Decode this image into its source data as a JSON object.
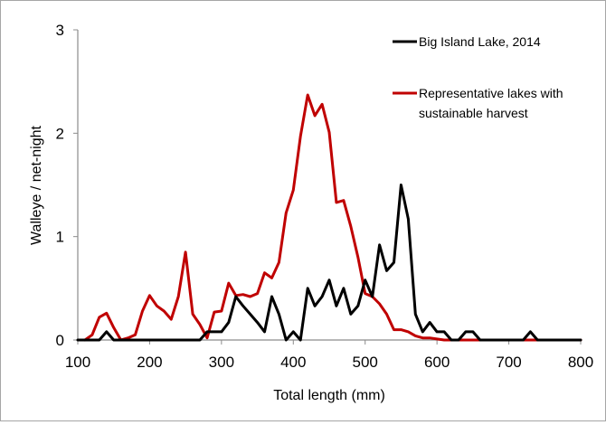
{
  "chart_data": {
    "type": "line",
    "title": "",
    "xlabel": "Total length (mm)",
    "ylabel": "Walleye / net-night",
    "xlim": [
      100,
      800
    ],
    "ylim": [
      0,
      3
    ],
    "x_ticks": [
      100,
      200,
      300,
      400,
      500,
      600,
      700,
      800
    ],
    "y_ticks": [
      0,
      1,
      2,
      3
    ],
    "grid": false,
    "legend_position": "top-right",
    "series": [
      {
        "name": "Big Island Lake, 2014",
        "color": "#000000",
        "x": [
          100,
          110,
          120,
          130,
          140,
          150,
          160,
          170,
          180,
          190,
          200,
          210,
          220,
          230,
          240,
          250,
          260,
          270,
          280,
          290,
          300,
          310,
          320,
          330,
          340,
          350,
          360,
          370,
          380,
          390,
          400,
          410,
          420,
          430,
          440,
          450,
          460,
          470,
          480,
          490,
          500,
          510,
          520,
          530,
          540,
          550,
          560,
          570,
          580,
          590,
          600,
          610,
          620,
          630,
          640,
          650,
          660,
          670,
          680,
          690,
          700,
          710,
          720,
          730,
          740,
          750,
          760,
          770,
          780,
          790,
          800
        ],
        "y": [
          0,
          0,
          0,
          0,
          0.08,
          0,
          0,
          0,
          0,
          0,
          0,
          0,
          0,
          0,
          0,
          0,
          0,
          0,
          0.08,
          0.08,
          0.08,
          0.17,
          0.42,
          0.33,
          0.25,
          0.17,
          0.08,
          0.42,
          0.25,
          0,
          0.08,
          0,
          0.5,
          0.33,
          0.42,
          0.58,
          0.33,
          0.5,
          0.25,
          0.33,
          0.58,
          0.42,
          0.92,
          0.67,
          0.75,
          1.5,
          1.17,
          0.25,
          0.08,
          0.17,
          0.08,
          0.08,
          0,
          0,
          0.08,
          0.08,
          0,
          0,
          0,
          0,
          0,
          0,
          0,
          0.08,
          0,
          0,
          0,
          0,
          0,
          0,
          0
        ]
      },
      {
        "name": "Representative lakes with sustainable harvest",
        "color": "#c00000",
        "x": [
          110,
          120,
          130,
          140,
          150,
          160,
          170,
          180,
          190,
          200,
          210,
          220,
          230,
          240,
          250,
          260,
          270,
          280,
          290,
          300,
          310,
          320,
          330,
          340,
          350,
          360,
          370,
          380,
          390,
          400,
          410,
          420,
          430,
          440,
          450,
          460,
          470,
          480,
          490,
          500,
          510,
          520,
          530,
          540,
          550,
          560,
          570,
          580,
          590,
          600,
          610,
          620,
          630,
          640,
          650,
          660,
          670,
          680,
          690,
          700,
          710,
          720,
          730,
          740,
          750,
          760,
          770,
          780,
          790,
          800
        ],
        "y": [
          0,
          0.05,
          0.22,
          0.26,
          0.12,
          0,
          0.02,
          0.05,
          0.28,
          0.43,
          0.33,
          0.28,
          0.2,
          0.42,
          0.85,
          0.25,
          0.15,
          0.02,
          0.27,
          0.28,
          0.55,
          0.43,
          0.44,
          0.42,
          0.45,
          0.65,
          0.6,
          0.75,
          1.23,
          1.45,
          1.97,
          2.37,
          2.17,
          2.28,
          2.01,
          1.33,
          1.35,
          1.1,
          0.8,
          0.45,
          0.42,
          0.35,
          0.25,
          0.1,
          0.1,
          0.08,
          0.04,
          0.02,
          0.02,
          0.01,
          0,
          0,
          0,
          0,
          0,
          0,
          0,
          0,
          0,
          0,
          0,
          0,
          0,
          0,
          0,
          0,
          0,
          0,
          0,
          0
        ]
      }
    ]
  }
}
